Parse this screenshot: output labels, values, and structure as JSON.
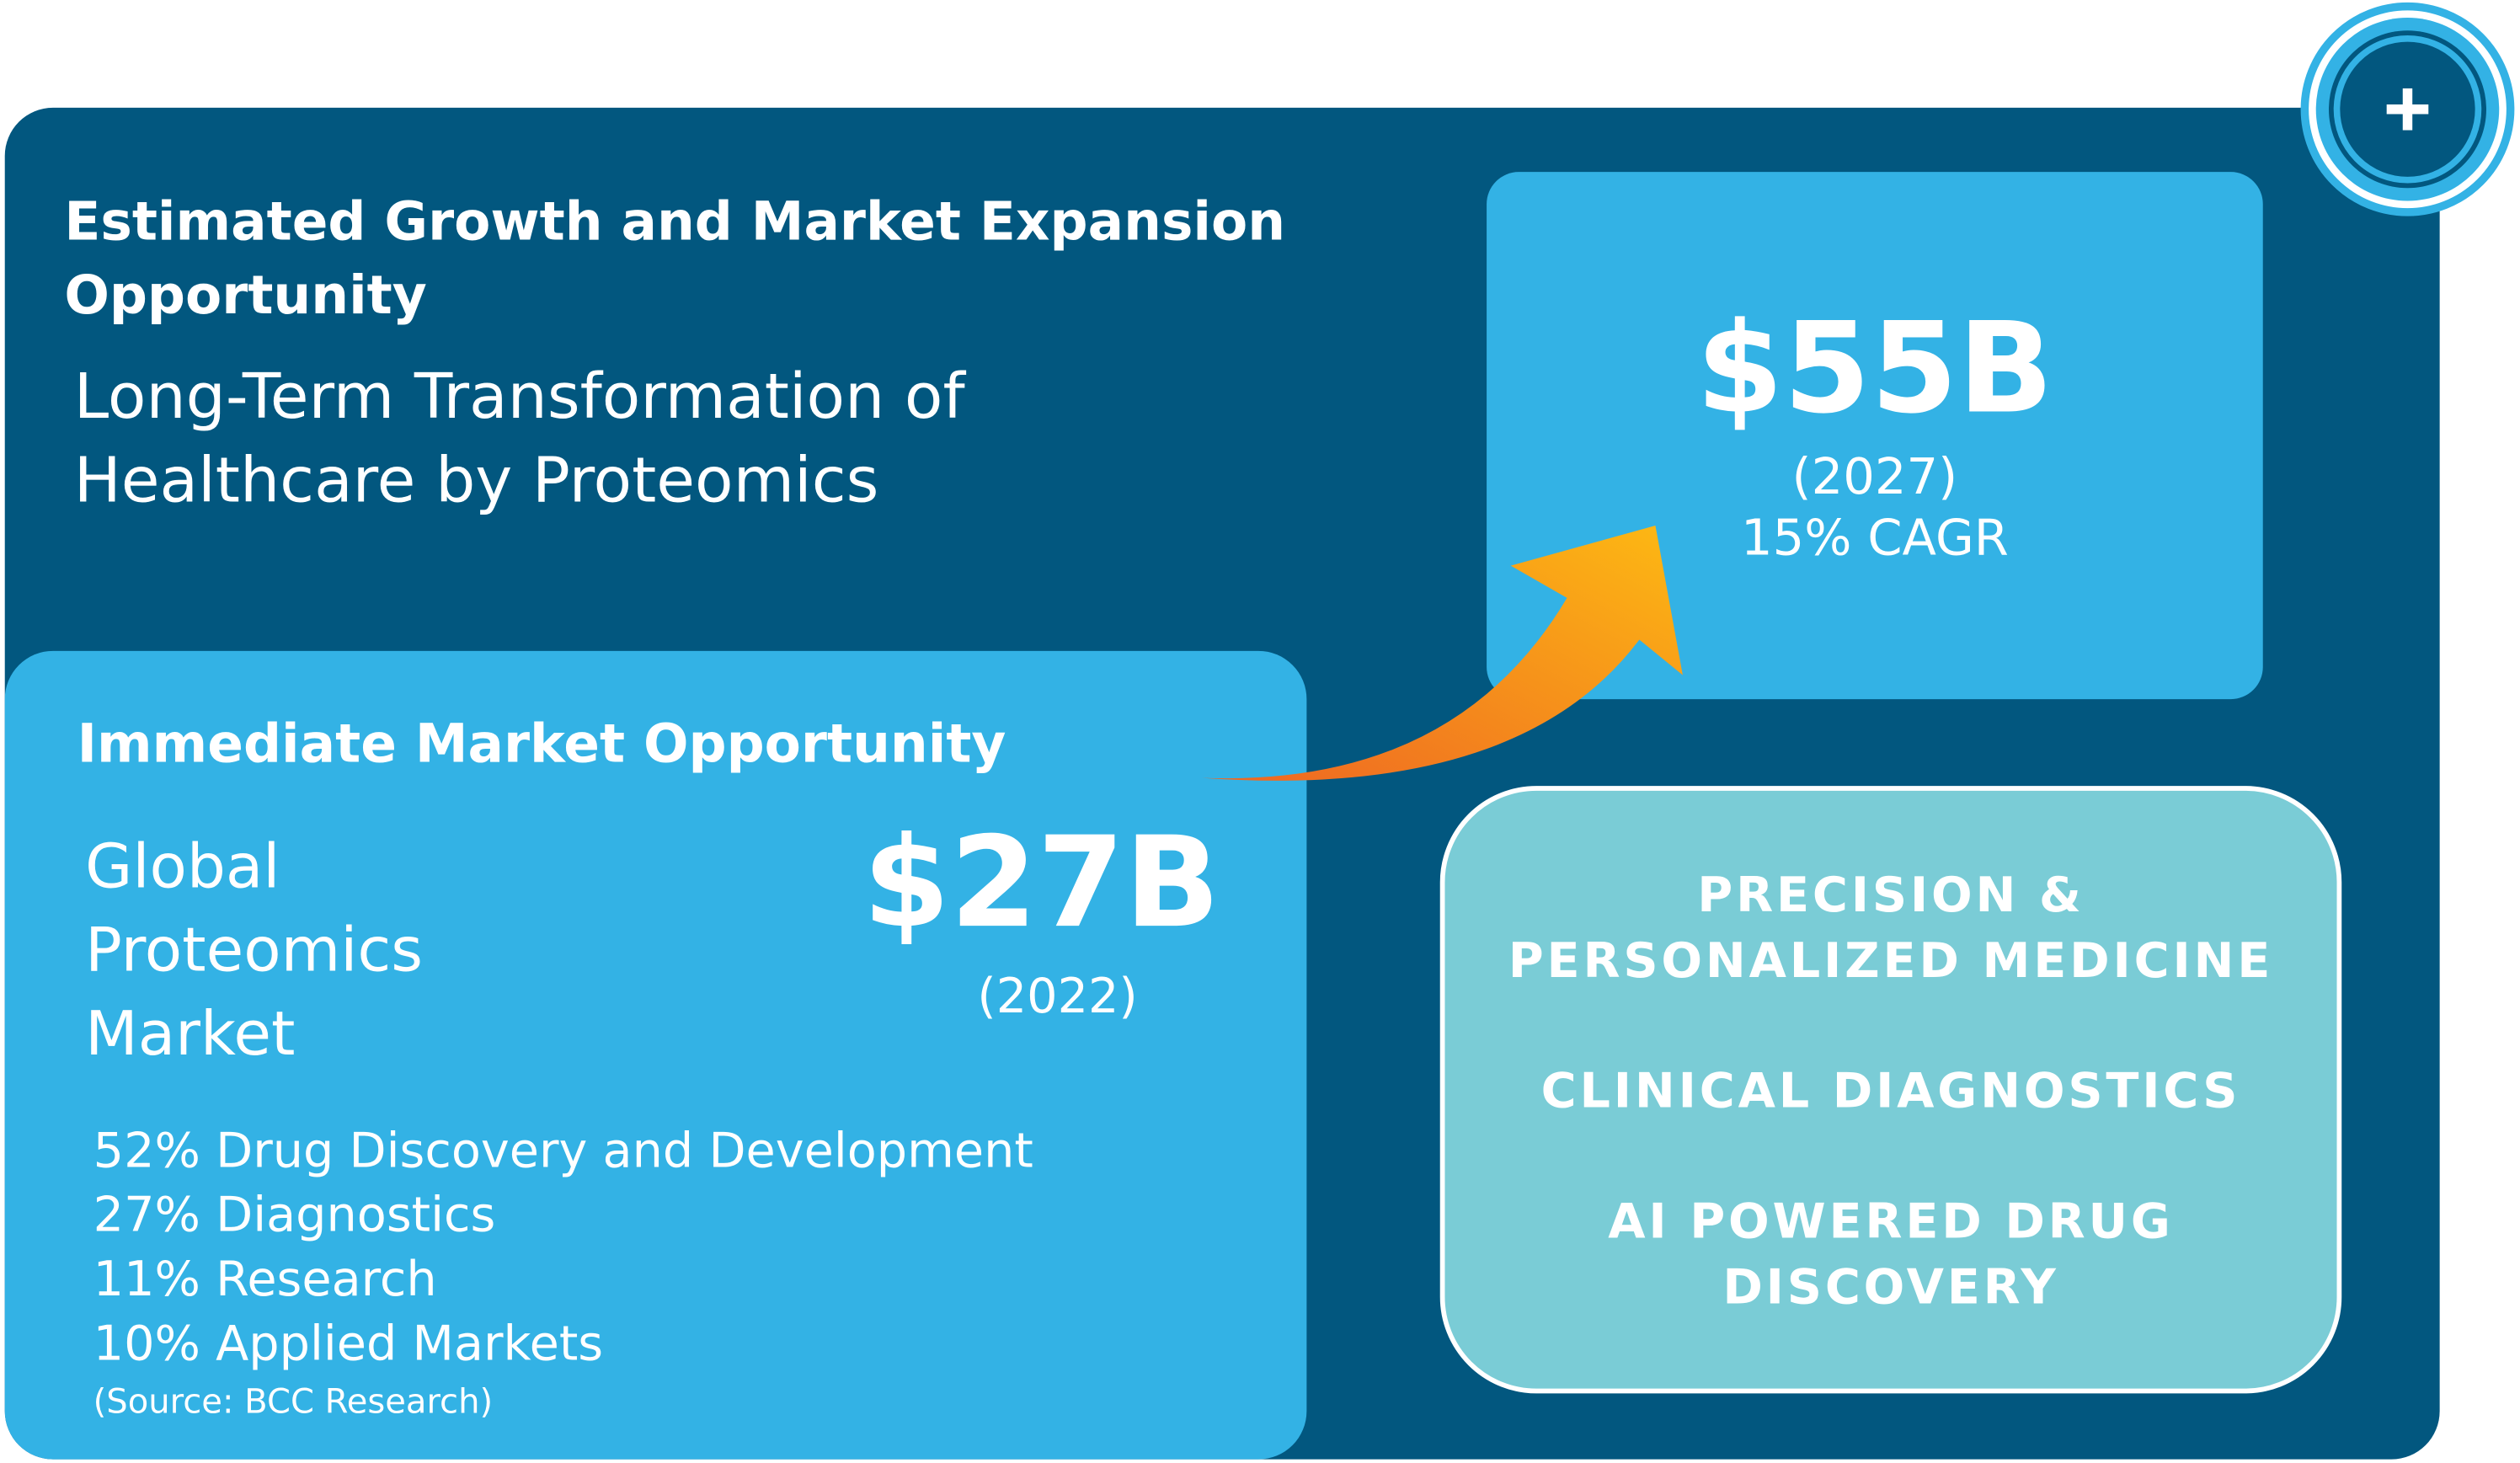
{
  "heading": "Estimated Growth and Market Expansion Opportunity",
  "subtitle": "Long-Term Transformation of Healthcare by Proteomics",
  "future": {
    "value": "$55B",
    "year": "(2027)",
    "cagr": "15% CAGR"
  },
  "immediate": {
    "title": "Immediate Market Opportunity",
    "market_label": "Global Proteomics Market",
    "value": "$27B",
    "year": "(2022)",
    "breakdown": [
      "52% Drug Discovery and Development",
      "27% Diagnostics",
      "11% Research",
      "10% Applied Markets"
    ],
    "source": "(Source: BCC Research)"
  },
  "areas": [
    "PRECISION & PERSONALIZED MEDICINE",
    "CLINICAL DIAGNOSTICS",
    "AI POWERED DRUG DISCOVERY"
  ],
  "icons": {
    "badge": "plus-icon",
    "arrow": "growth-arrow-icon"
  },
  "colors": {
    "dark_blue": "#02577f",
    "light_blue": "#33b2e5",
    "teal": "#7accd6",
    "arrow_start": "#ee6523",
    "arrow_end": "#fdb913"
  }
}
